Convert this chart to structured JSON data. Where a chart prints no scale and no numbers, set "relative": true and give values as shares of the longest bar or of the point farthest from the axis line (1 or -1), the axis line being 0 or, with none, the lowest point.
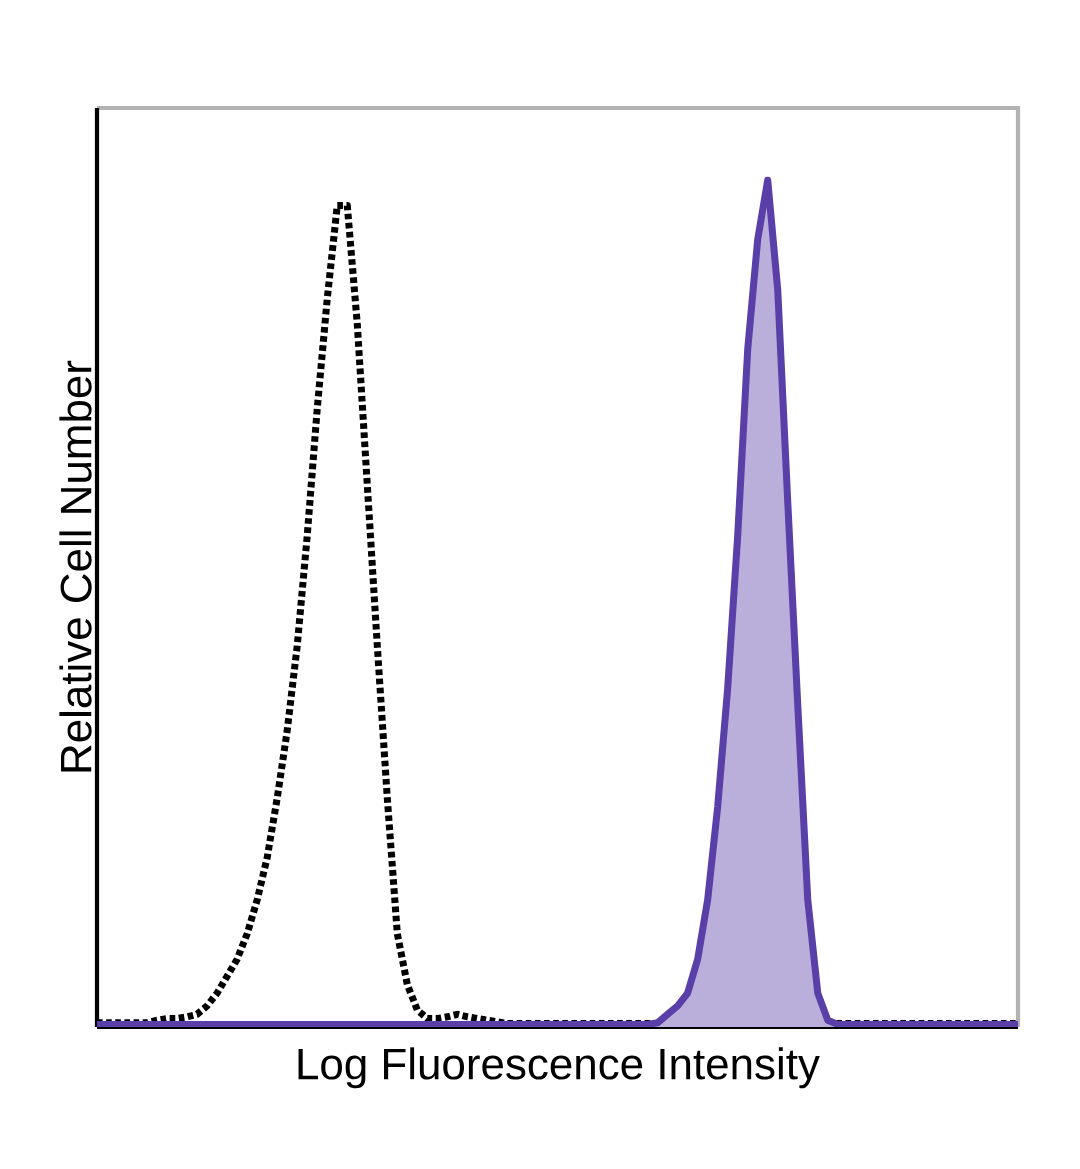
{
  "chart_data": {
    "type": "line",
    "relative": true,
    "xlabel": "Log Fluorescence Intensity",
    "ylabel": "Relative Cell Number",
    "categories": [
      null,
      null,
      null,
      null,
      null,
      null,
      null,
      null,
      null,
      null,
      null,
      null,
      null,
      null,
      null,
      null,
      null,
      null,
      null,
      null,
      null,
      null,
      null,
      null,
      null,
      null,
      null,
      null,
      null,
      null,
      null,
      null,
      null,
      null,
      null,
      null,
      null,
      null,
      null,
      null,
      null,
      null,
      null,
      null,
      null,
      null,
      null,
      null,
      null,
      null,
      null,
      null,
      null,
      null,
      null,
      null,
      null,
      null,
      null,
      null,
      null,
      null,
      null,
      null,
      null,
      null,
      null,
      null,
      null,
      null,
      null,
      null,
      null,
      null,
      null,
      null,
      null,
      null,
      null,
      null,
      null,
      null,
      null,
      null,
      null,
      null,
      null,
      null,
      null,
      null,
      null,
      null,
      null
    ],
    "series": [
      {
        "line_style": "dotted",
        "color": "#000000",
        "values": [
          0.005,
          0.005,
          0.005,
          0.005,
          0.005,
          0.005,
          0.008,
          0.01,
          0.01,
          0.012,
          0.015,
          0.025,
          0.04,
          0.06,
          0.08,
          0.11,
          0.15,
          0.2,
          0.27,
          0.35,
          0.45,
          0.58,
          0.73,
          0.86,
          0.97,
          0.97,
          0.83,
          0.64,
          0.45,
          0.27,
          0.11,
          0.05,
          0.02,
          0.01,
          0.01,
          0.012,
          0.015,
          0.012,
          0.01,
          0.008,
          0.006,
          0.004,
          0.004,
          0.004,
          0.004,
          0.004,
          0.004,
          0.004,
          0.004,
          0.004,
          0.004,
          0.004,
          0.004,
          0.004,
          0.004,
          0.004,
          0.004,
          0.004,
          0.004,
          0.004,
          0.004,
          0.004,
          0.004,
          0.004,
          0.004,
          0.004,
          0.004,
          0.004,
          0.004,
          0.004,
          0.004,
          0.004,
          0.004,
          0.004,
          0.004,
          0.004,
          0.004,
          0.004,
          0.004,
          0.004,
          0.004,
          0.004,
          0.004,
          0.004,
          0.004,
          0.004,
          0.004,
          0.004,
          0.004,
          0.004,
          0.004,
          0.004,
          0.004
        ]
      },
      {
        "type": "area",
        "line_style": "solid",
        "color": "#5b3fa8",
        "values": [
          0.003,
          0.003,
          0.003,
          0.003,
          0.003,
          0.003,
          0.003,
          0.003,
          0.003,
          0.003,
          0.003,
          0.003,
          0.003,
          0.003,
          0.003,
          0.003,
          0.003,
          0.003,
          0.003,
          0.003,
          0.003,
          0.003,
          0.003,
          0.003,
          0.003,
          0.003,
          0.003,
          0.003,
          0.003,
          0.003,
          0.003,
          0.003,
          0.003,
          0.003,
          0.003,
          0.003,
          0.003,
          0.003,
          0.003,
          0.003,
          0.003,
          0.003,
          0.003,
          0.003,
          0.003,
          0.003,
          0.003,
          0.003,
          0.003,
          0.003,
          0.003,
          0.003,
          0.003,
          0.003,
          0.003,
          0.003,
          0.005,
          0.015,
          0.025,
          0.04,
          0.08,
          0.15,
          0.26,
          0.4,
          0.58,
          0.8,
          0.93,
          1.0,
          0.87,
          0.62,
          0.38,
          0.15,
          0.04,
          0.008,
          0.003,
          0.003,
          0.003,
          0.003,
          0.003,
          0.003,
          0.003,
          0.003,
          0.003,
          0.003,
          0.003,
          0.003,
          0.003,
          0.003,
          0.003,
          0.003,
          0.003,
          0.003,
          0.003
        ]
      }
    ]
  }
}
